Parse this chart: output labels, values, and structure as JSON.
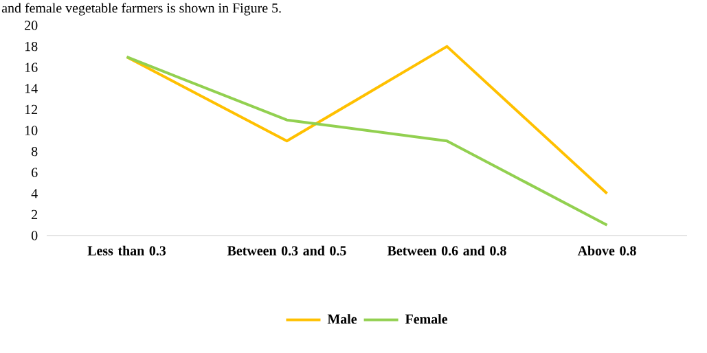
{
  "chart_data": {
    "type": "line",
    "annotations": [
      "and female vegetable farmers is shown in Figure 5."
    ],
    "categories": [
      "Less than 0.3",
      "Between 0.3 and 0.5",
      "Between 0.6 and 0.8",
      "Above  0.8"
    ],
    "series": [
      {
        "name": "Male",
        "color": "#ffc000",
        "values": [
          17,
          9,
          18,
          4
        ]
      },
      {
        "name": "Female",
        "color": "#92d050",
        "values": [
          17,
          11,
          9,
          1
        ]
      }
    ],
    "ylim": [
      0,
      20
    ],
    "yticks": [
      0,
      2,
      4,
      6,
      8,
      10,
      12,
      14,
      16,
      18,
      20
    ],
    "legend": "bottom"
  }
}
